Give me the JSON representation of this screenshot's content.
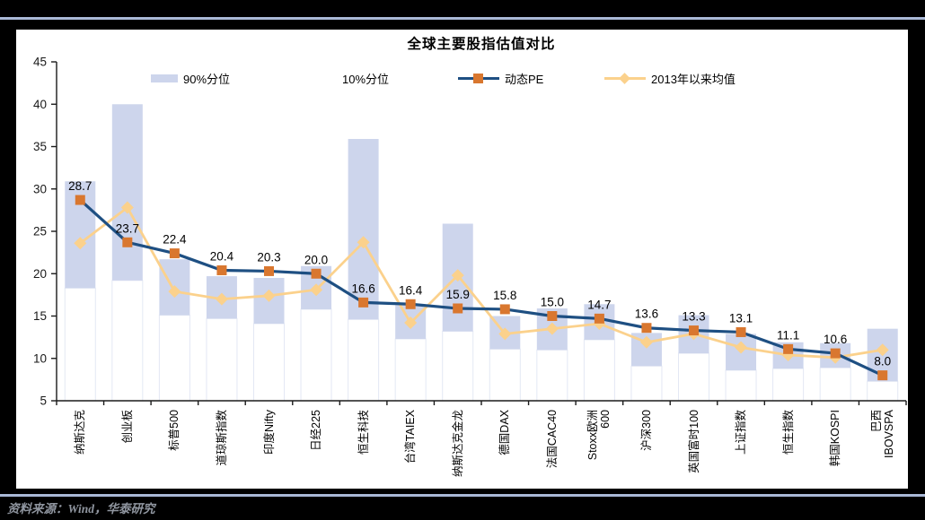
{
  "frame": {
    "source_text": "资料来源：Wind，华泰研究"
  },
  "chart_data": {
    "type": "bar",
    "subtype": "floating-range-bars-with-two-line-series",
    "title": "全球主要股指估值对比",
    "legend": [
      "90%分位",
      "10%分位",
      "动态PE",
      "2013年以来均值"
    ],
    "legend_position": "top",
    "grid": false,
    "ylim": [
      5,
      45
    ],
    "ytick_interval": 5,
    "yticks": [
      5,
      10,
      15,
      20,
      25,
      30,
      35,
      40,
      45
    ],
    "categories": [
      "纳斯达克",
      "创业板",
      "标普500",
      "道琼斯指数",
      "印度Nifty",
      "日经225",
      "恒生科技",
      "台湾TAIEX",
      "纳斯达克金龙",
      "德国DAX",
      "法国CAC40",
      "Stoxx欧洲\n600",
      "沪深300",
      "英国富时100",
      "上证指数",
      "恒生指数",
      "韩国KOSPI",
      "巴西\nIBOVSPA"
    ],
    "series": [
      {
        "name": "90%分位",
        "type": "range_top",
        "values": [
          30.9,
          40.0,
          21.7,
          19.7,
          19.5,
          20.9,
          35.9,
          16.3,
          25.9,
          15.0,
          15.9,
          16.4,
          13.0,
          15.1,
          12.9,
          11.9,
          11.8,
          13.5
        ]
      },
      {
        "name": "10%分位",
        "type": "range_bottom",
        "values": [
          18.3,
          19.2,
          15.1,
          14.7,
          14.1,
          15.8,
          14.6,
          12.3,
          13.2,
          11.1,
          11.0,
          12.2,
          9.1,
          10.6,
          8.6,
          8.8,
          8.9,
          7.3
        ]
      },
      {
        "name": "动态PE",
        "type": "line",
        "marker": "square",
        "values": [
          28.7,
          23.7,
          22.4,
          20.4,
          20.3,
          20.0,
          16.6,
          16.4,
          15.9,
          15.8,
          15.0,
          14.7,
          13.6,
          13.3,
          13.1,
          11.1,
          10.6,
          8.0
        ],
        "labels": [
          "28.7",
          "23.7",
          "22.4",
          "20.4",
          "20.3",
          "20.0",
          "16.6",
          "16.4",
          "15.9",
          "15.8",
          "15.0",
          "14.7",
          "13.6",
          "13.3",
          "13.1",
          "11.1",
          "10.6",
          "8.0"
        ]
      },
      {
        "name": "2013年以来均值",
        "type": "line",
        "marker": "diamond",
        "values": [
          23.6,
          27.8,
          17.9,
          17.0,
          17.4,
          18.1,
          23.7,
          14.2,
          19.8,
          12.9,
          13.5,
          14.1,
          11.9,
          12.9,
          11.3,
          10.4,
          10.1,
          11.0
        ]
      }
    ],
    "colors": {
      "range_bar": "#cdd5ec",
      "lower_bar_fill": "#ffffff",
      "lower_bar_border": "#e3e8f4",
      "pe_line": "#1e4f82",
      "pe_marker": "#d9772f",
      "mean_line": "#fbd18c",
      "axis": "#1a1a1a",
      "value_label": "#000000",
      "accent_rule": "#a9b8d6"
    }
  }
}
